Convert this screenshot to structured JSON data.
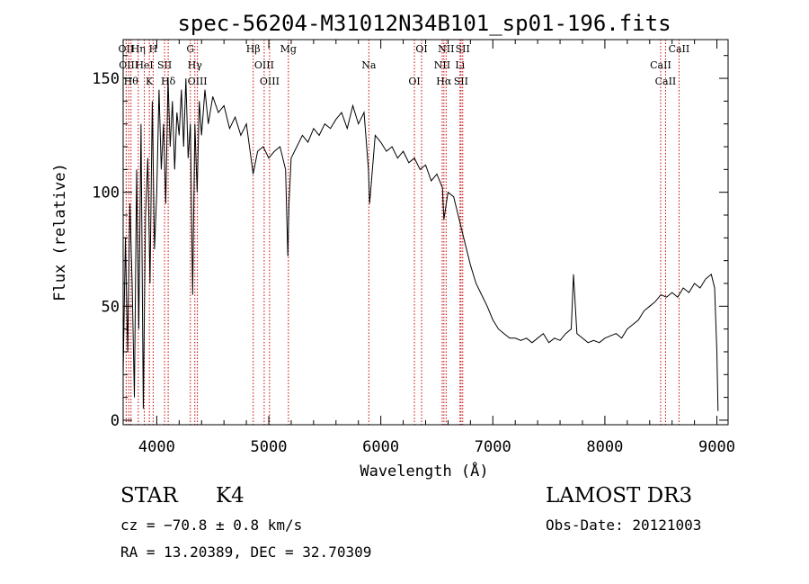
{
  "title": "spec-56204-M31012N34B101_sp01-196.fits",
  "info": {
    "class": "STAR",
    "subclass": "K4",
    "survey": "LAMOST DR3",
    "cz": "cz = −70.8 ± 0.8 km/s",
    "obs_date": "Obs-Date: 20121003",
    "radec": "RA =  13.20389, DEC =  32.70309"
  },
  "colors": {
    "spectrum": "#000000",
    "line_marker": "#cc0000",
    "axis": "#000000"
  },
  "chart_data": {
    "type": "line",
    "title": "spec-56204-M31012N34B101_sp01-196.fits",
    "xlabel": "Wavelength (Å)",
    "ylabel": "Flux (relative)",
    "xlim": [
      3700,
      9100
    ],
    "ylim": [
      -2,
      167
    ],
    "x_ticks": [
      4000,
      5000,
      6000,
      7000,
      8000,
      9000
    ],
    "y_ticks": [
      0,
      50,
      100,
      150
    ],
    "grid": false,
    "series": [
      {
        "x": [
          3700,
          3720,
          3740,
          3760,
          3780,
          3800,
          3820,
          3840,
          3860,
          3880,
          3900,
          3920,
          3940,
          3960,
          3980,
          4000,
          4020,
          4040,
          4060,
          4080,
          4100,
          4120,
          4140,
          4160,
          4180,
          4200,
          4220,
          4240,
          4260,
          4280,
          4300,
          4320,
          4340,
          4360,
          4380,
          4400,
          4430,
          4460,
          4500,
          4550,
          4600,
          4650,
          4700,
          4750,
          4800,
          4850,
          4860,
          4900,
          4950,
          5000,
          5050,
          5100,
          5150,
          5170,
          5180,
          5200,
          5250,
          5300,
          5350,
          5400,
          5450,
          5500,
          5550,
          5600,
          5650,
          5700,
          5750,
          5800,
          5850,
          5890,
          5900,
          5950,
          6000,
          6050,
          6100,
          6150,
          6200,
          6250,
          6300,
          6350,
          6400,
          6450,
          6500,
          6550,
          6563,
          6600,
          6650,
          6700,
          6750,
          6800,
          6850,
          6900,
          6950,
          7000,
          7050,
          7100,
          7150,
          7200,
          7250,
          7300,
          7350,
          7400,
          7450,
          7500,
          7550,
          7600,
          7650,
          7700,
          7720,
          7750,
          7800,
          7850,
          7900,
          7950,
          8000,
          8050,
          8100,
          8150,
          8200,
          8250,
          8300,
          8350,
          8400,
          8450,
          8500,
          8550,
          8600,
          8650,
          8700,
          8750,
          8800,
          8850,
          8900,
          8950,
          8980,
          9000,
          9010
        ],
        "y": [
          20,
          80,
          30,
          95,
          60,
          10,
          110,
          40,
          130,
          5,
          90,
          115,
          60,
          140,
          75,
          100,
          145,
          110,
          130,
          95,
          150,
          120,
          140,
          110,
          135,
          125,
          145,
          120,
          150,
          115,
          130,
          55,
          130,
          100,
          140,
          125,
          145,
          130,
          142,
          135,
          138,
          128,
          133,
          125,
          130,
          112,
          108,
          118,
          120,
          115,
          118,
          120,
          110,
          72,
          95,
          115,
          120,
          125,
          122,
          128,
          125,
          130,
          128,
          132,
          135,
          128,
          138,
          130,
          135,
          110,
          95,
          125,
          122,
          118,
          120,
          115,
          118,
          113,
          115,
          110,
          112,
          105,
          108,
          102,
          88,
          100,
          98,
          88,
          78,
          68,
          60,
          55,
          50,
          44,
          40,
          38,
          36,
          36,
          35,
          36,
          34,
          36,
          38,
          34,
          36,
          35,
          38,
          40,
          64,
          38,
          36,
          34,
          35,
          34,
          36,
          37,
          38,
          36,
          40,
          42,
          44,
          48,
          50,
          52,
          55,
          54,
          56,
          54,
          58,
          56,
          60,
          58,
          62,
          64,
          58,
          30,
          4
        ]
      }
    ],
    "line_markers": [
      {
        "wavelength": 3727,
        "label": "OII"
      },
      {
        "wavelength": 3750,
        "label": "OIII"
      },
      {
        "wavelength": 3770,
        "label": "Hθ"
      },
      {
        "wavelength": 3835,
        "label": "Hη"
      },
      {
        "wavelength": 3889,
        "label": "HeI"
      },
      {
        "wavelength": 3934,
        "label": "K"
      },
      {
        "wavelength": 3968,
        "label": "H"
      },
      {
        "wavelength": 4070,
        "label": "SII"
      },
      {
        "wavelength": 4102,
        "label": "Hδ"
      },
      {
        "wavelength": 4300,
        "label": "G"
      },
      {
        "wavelength": 4340,
        "label": "Hγ"
      },
      {
        "wavelength": 4363,
        "label": "OIII"
      },
      {
        "wavelength": 4861,
        "label": "Hβ"
      },
      {
        "wavelength": 4959,
        "label": "OIII"
      },
      {
        "wavelength": 5007,
        "label": "OIII"
      },
      {
        "wavelength": 5175,
        "label": "Mg"
      },
      {
        "wavelength": 5893,
        "label": "Na"
      },
      {
        "wavelength": 6300,
        "label": "OI"
      },
      {
        "wavelength": 6364,
        "label": "OI"
      },
      {
        "wavelength": 6548,
        "label": "NII"
      },
      {
        "wavelength": 6563,
        "label": "Hα"
      },
      {
        "wavelength": 6583,
        "label": "NII"
      },
      {
        "wavelength": 6707,
        "label": "Li"
      },
      {
        "wavelength": 6716,
        "label": "SII"
      },
      {
        "wavelength": 6731,
        "label": "SII"
      },
      {
        "wavelength": 8498,
        "label": "CaII"
      },
      {
        "wavelength": 8542,
        "label": "CaII"
      },
      {
        "wavelength": 8662,
        "label": "CaII"
      }
    ]
  }
}
